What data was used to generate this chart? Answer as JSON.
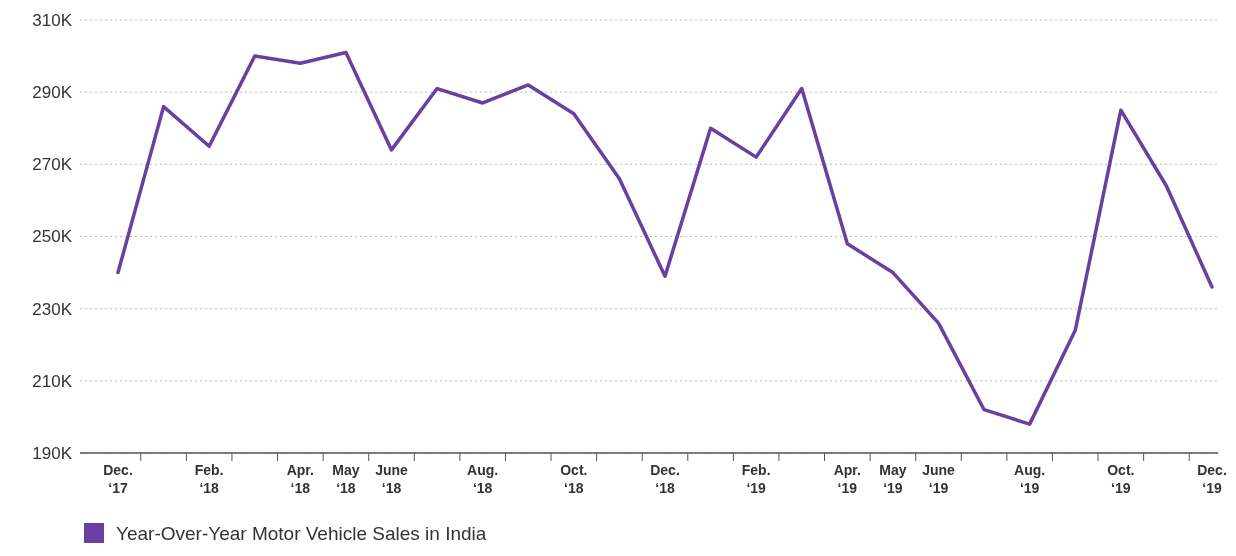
{
  "chart_data": {
    "type": "line",
    "categories": [
      "Dec. ‘17",
      null,
      "Feb. ‘18",
      null,
      "Apr. ‘18",
      "May ‘18",
      "June ‘18",
      null,
      "Aug. ‘18",
      null,
      "Oct. ‘18",
      null,
      "Dec. ‘18",
      null,
      "Feb. ‘19",
      null,
      "Apr. ‘19",
      "May ‘19",
      "June ‘19",
      null,
      "Aug. ‘19",
      null,
      "Oct. ‘19",
      null,
      "Dec. ‘19"
    ],
    "series": [
      {
        "name": "Year-Over-Year Motor Vehicle Sales in India",
        "color": "#6b3fa0",
        "values": [
          240,
          286,
          275,
          300,
          298,
          301,
          274,
          291,
          287,
          292,
          284,
          266,
          239,
          280,
          272,
          291,
          248,
          240,
          226,
          202,
          198,
          224,
          285,
          264,
          236
        ]
      }
    ],
    "ylim": [
      190,
      310
    ],
    "yticks": [
      {
        "value": 190,
        "label": "190K"
      },
      {
        "value": 210,
        "label": "210K"
      },
      {
        "value": 230,
        "label": "230K"
      },
      {
        "value": 250,
        "label": "250K"
      },
      {
        "value": 270,
        "label": "270K"
      },
      {
        "value": 290,
        "label": "290K"
      },
      {
        "value": 310,
        "label": "310K"
      }
    ],
    "grid": "y",
    "legend": "bottom left",
    "marker": "none",
    "line_style": "solid"
  }
}
